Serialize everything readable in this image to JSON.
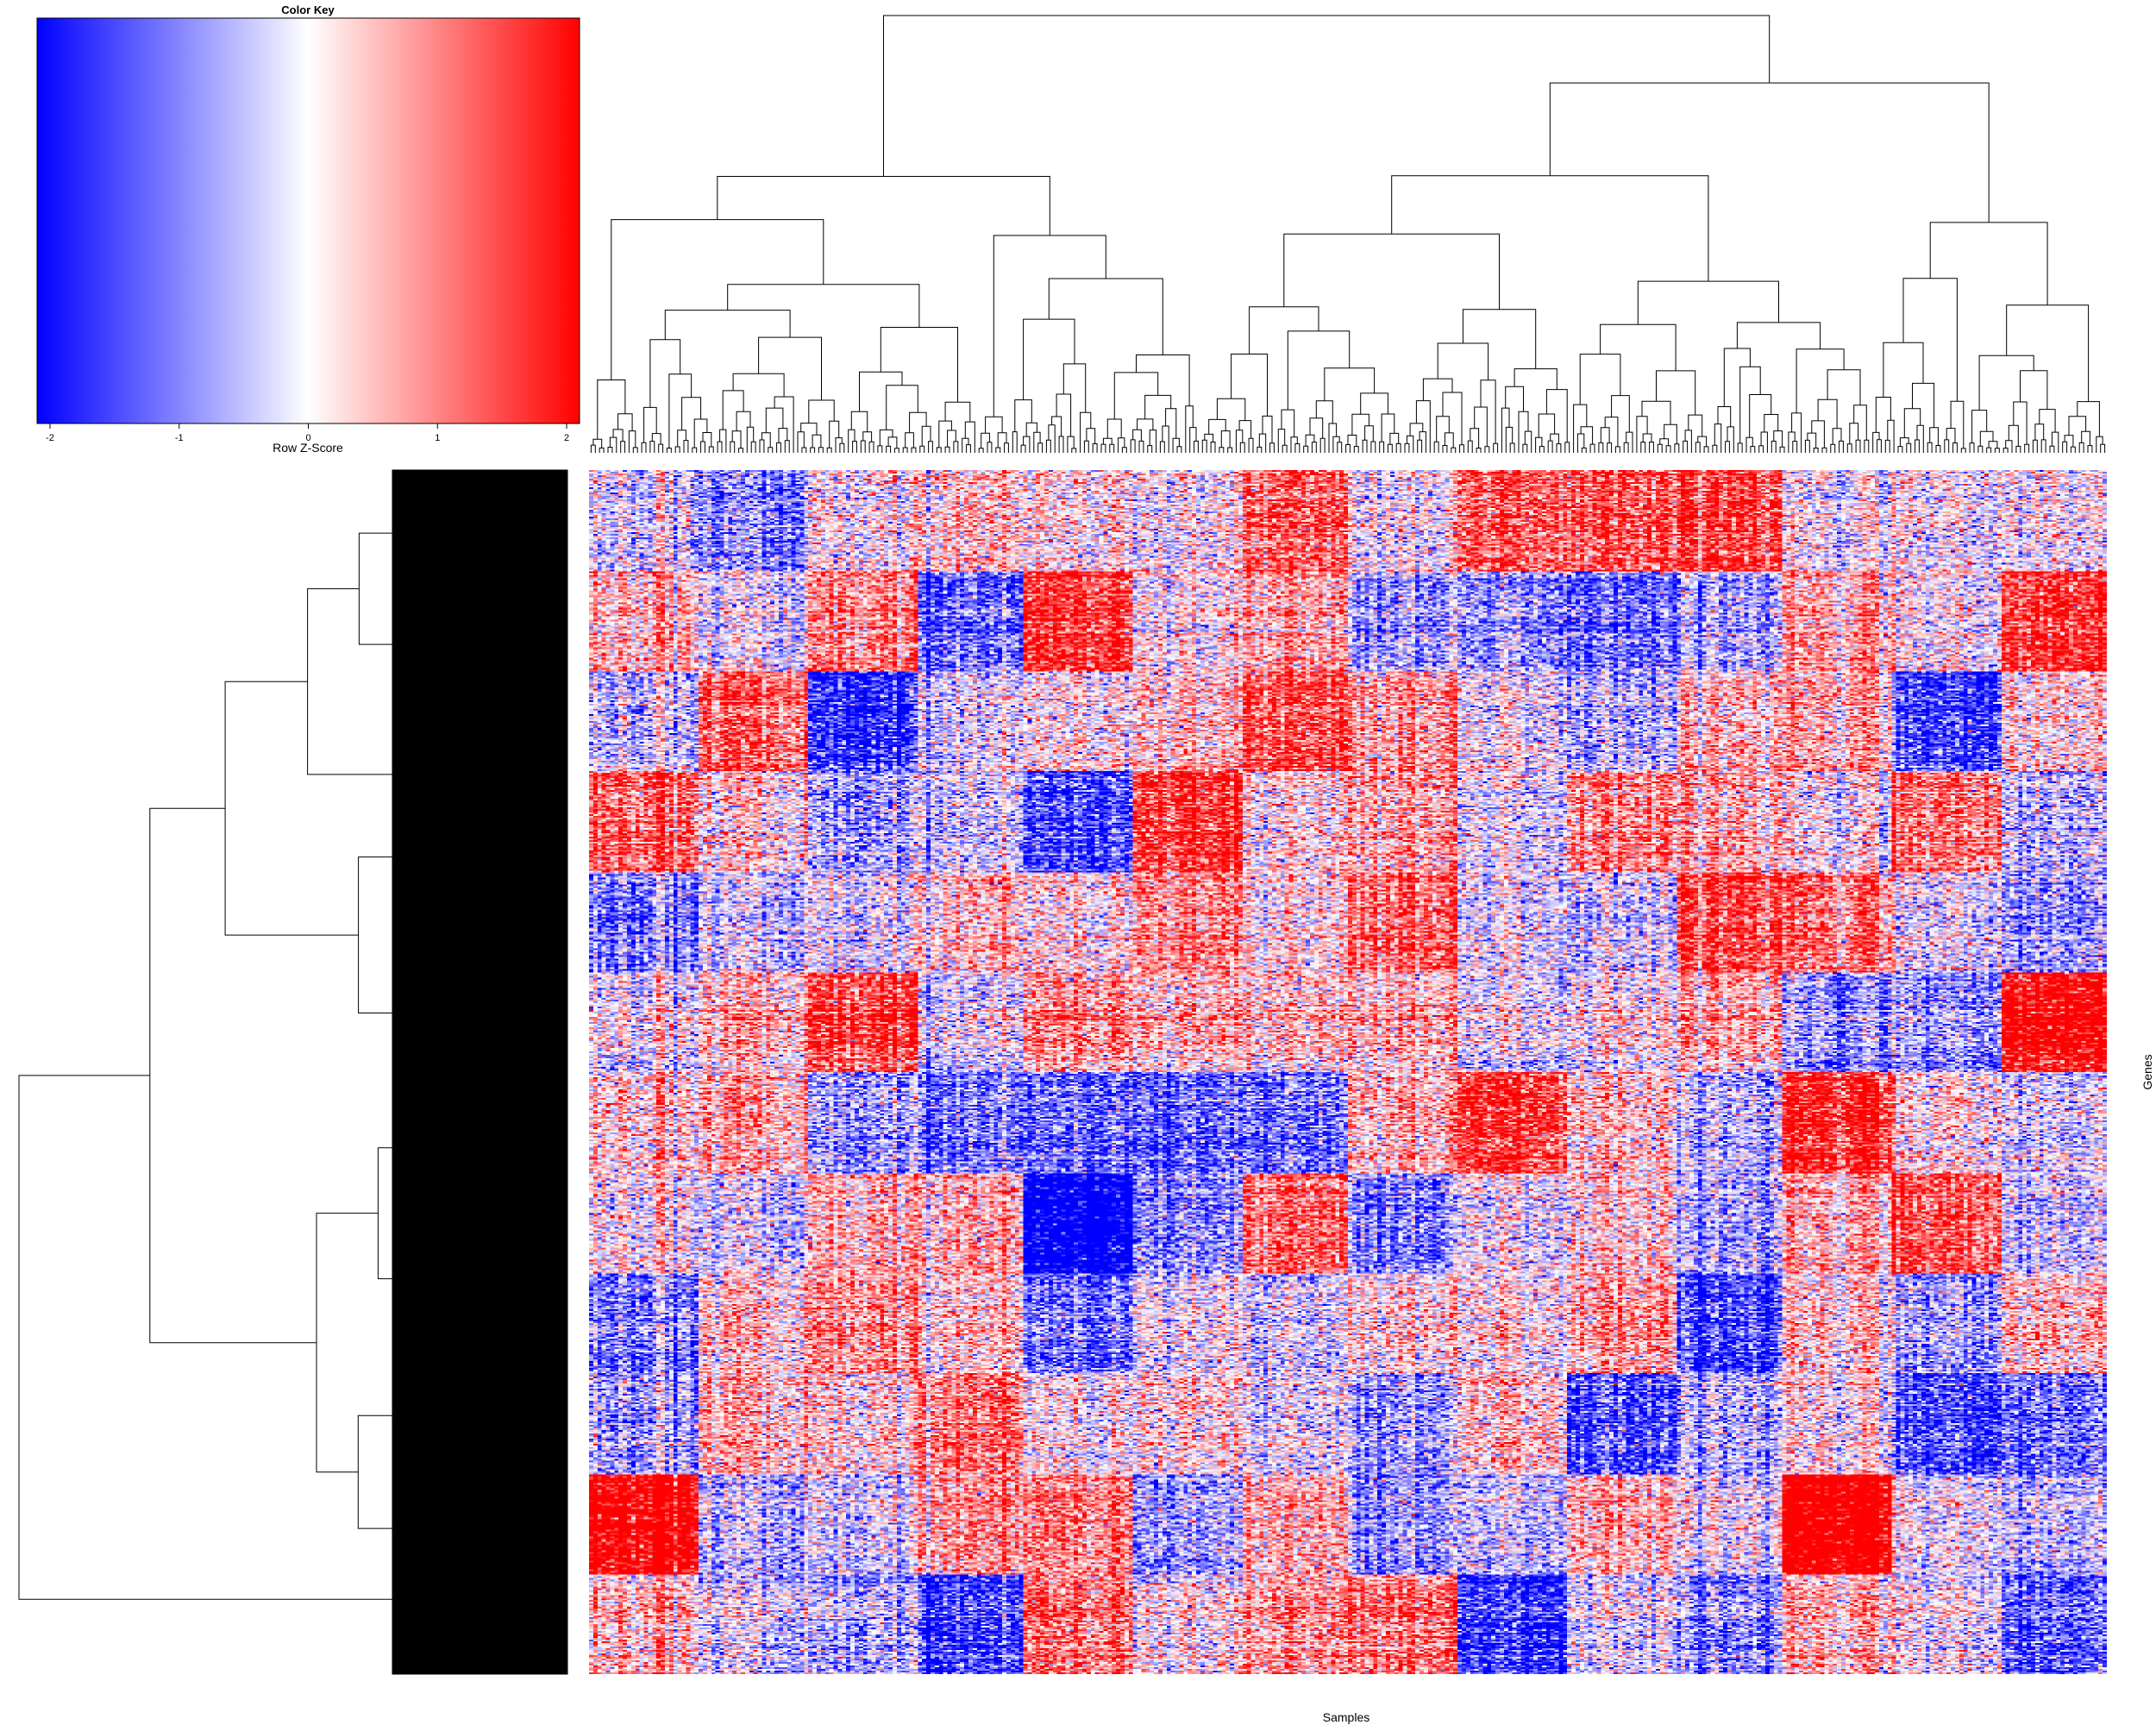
{
  "chart_data": {
    "type": "heatmap",
    "color_key": {
      "title": "Color Key",
      "xlabel": "Row Z-Score",
      "range": [
        -2.1,
        2.1
      ],
      "ticks": [
        -2,
        -1,
        0,
        1,
        2
      ],
      "tick_labels": [
        "-2",
        "-1",
        "0",
        "1",
        "2"
      ],
      "colors": [
        "#0000ff",
        "#ffffff",
        "#ff0000"
      ]
    },
    "xlabel": "Samples",
    "ylabel": "Genes",
    "row_dendrogram": true,
    "column_dendrogram": true,
    "row_labels_shown": false,
    "column_labels_shown": false
  }
}
